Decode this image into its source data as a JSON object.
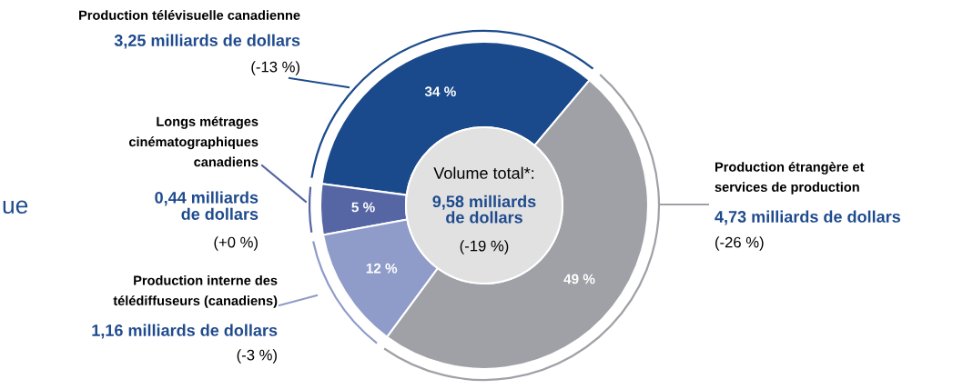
{
  "chart_data": {
    "type": "donut",
    "categories": [
      "Production télévisuelle canadienne",
      "Longs métrages\ncinématographiques\ncanadiens",
      "Production interne des\ntélédiffuseurs (canadiens)",
      "Production étrangère et\nservices de production"
    ],
    "values": [
      34,
      5,
      12,
      49
    ],
    "colors": [
      "#1b4a8c",
      "#5666a4",
      "#8f9bc9",
      "#a0a1a6"
    ],
    "value_labels": [
      "34 %",
      "5 %",
      "12 %",
      "49 %"
    ],
    "annotations": [
      "3,25 milliards de dollars",
      "(-13 %)",
      "0,44 milliards\nde dollars",
      "(+0 %)",
      "1,16 milliards de dollars",
      "(-3 %)",
      "4,73 milliards de dollars",
      "(-26 %)",
      "Volume total*:",
      "9,58 milliards\nde dollars",
      "(-19 %)",
      "ue"
    ]
  }
}
